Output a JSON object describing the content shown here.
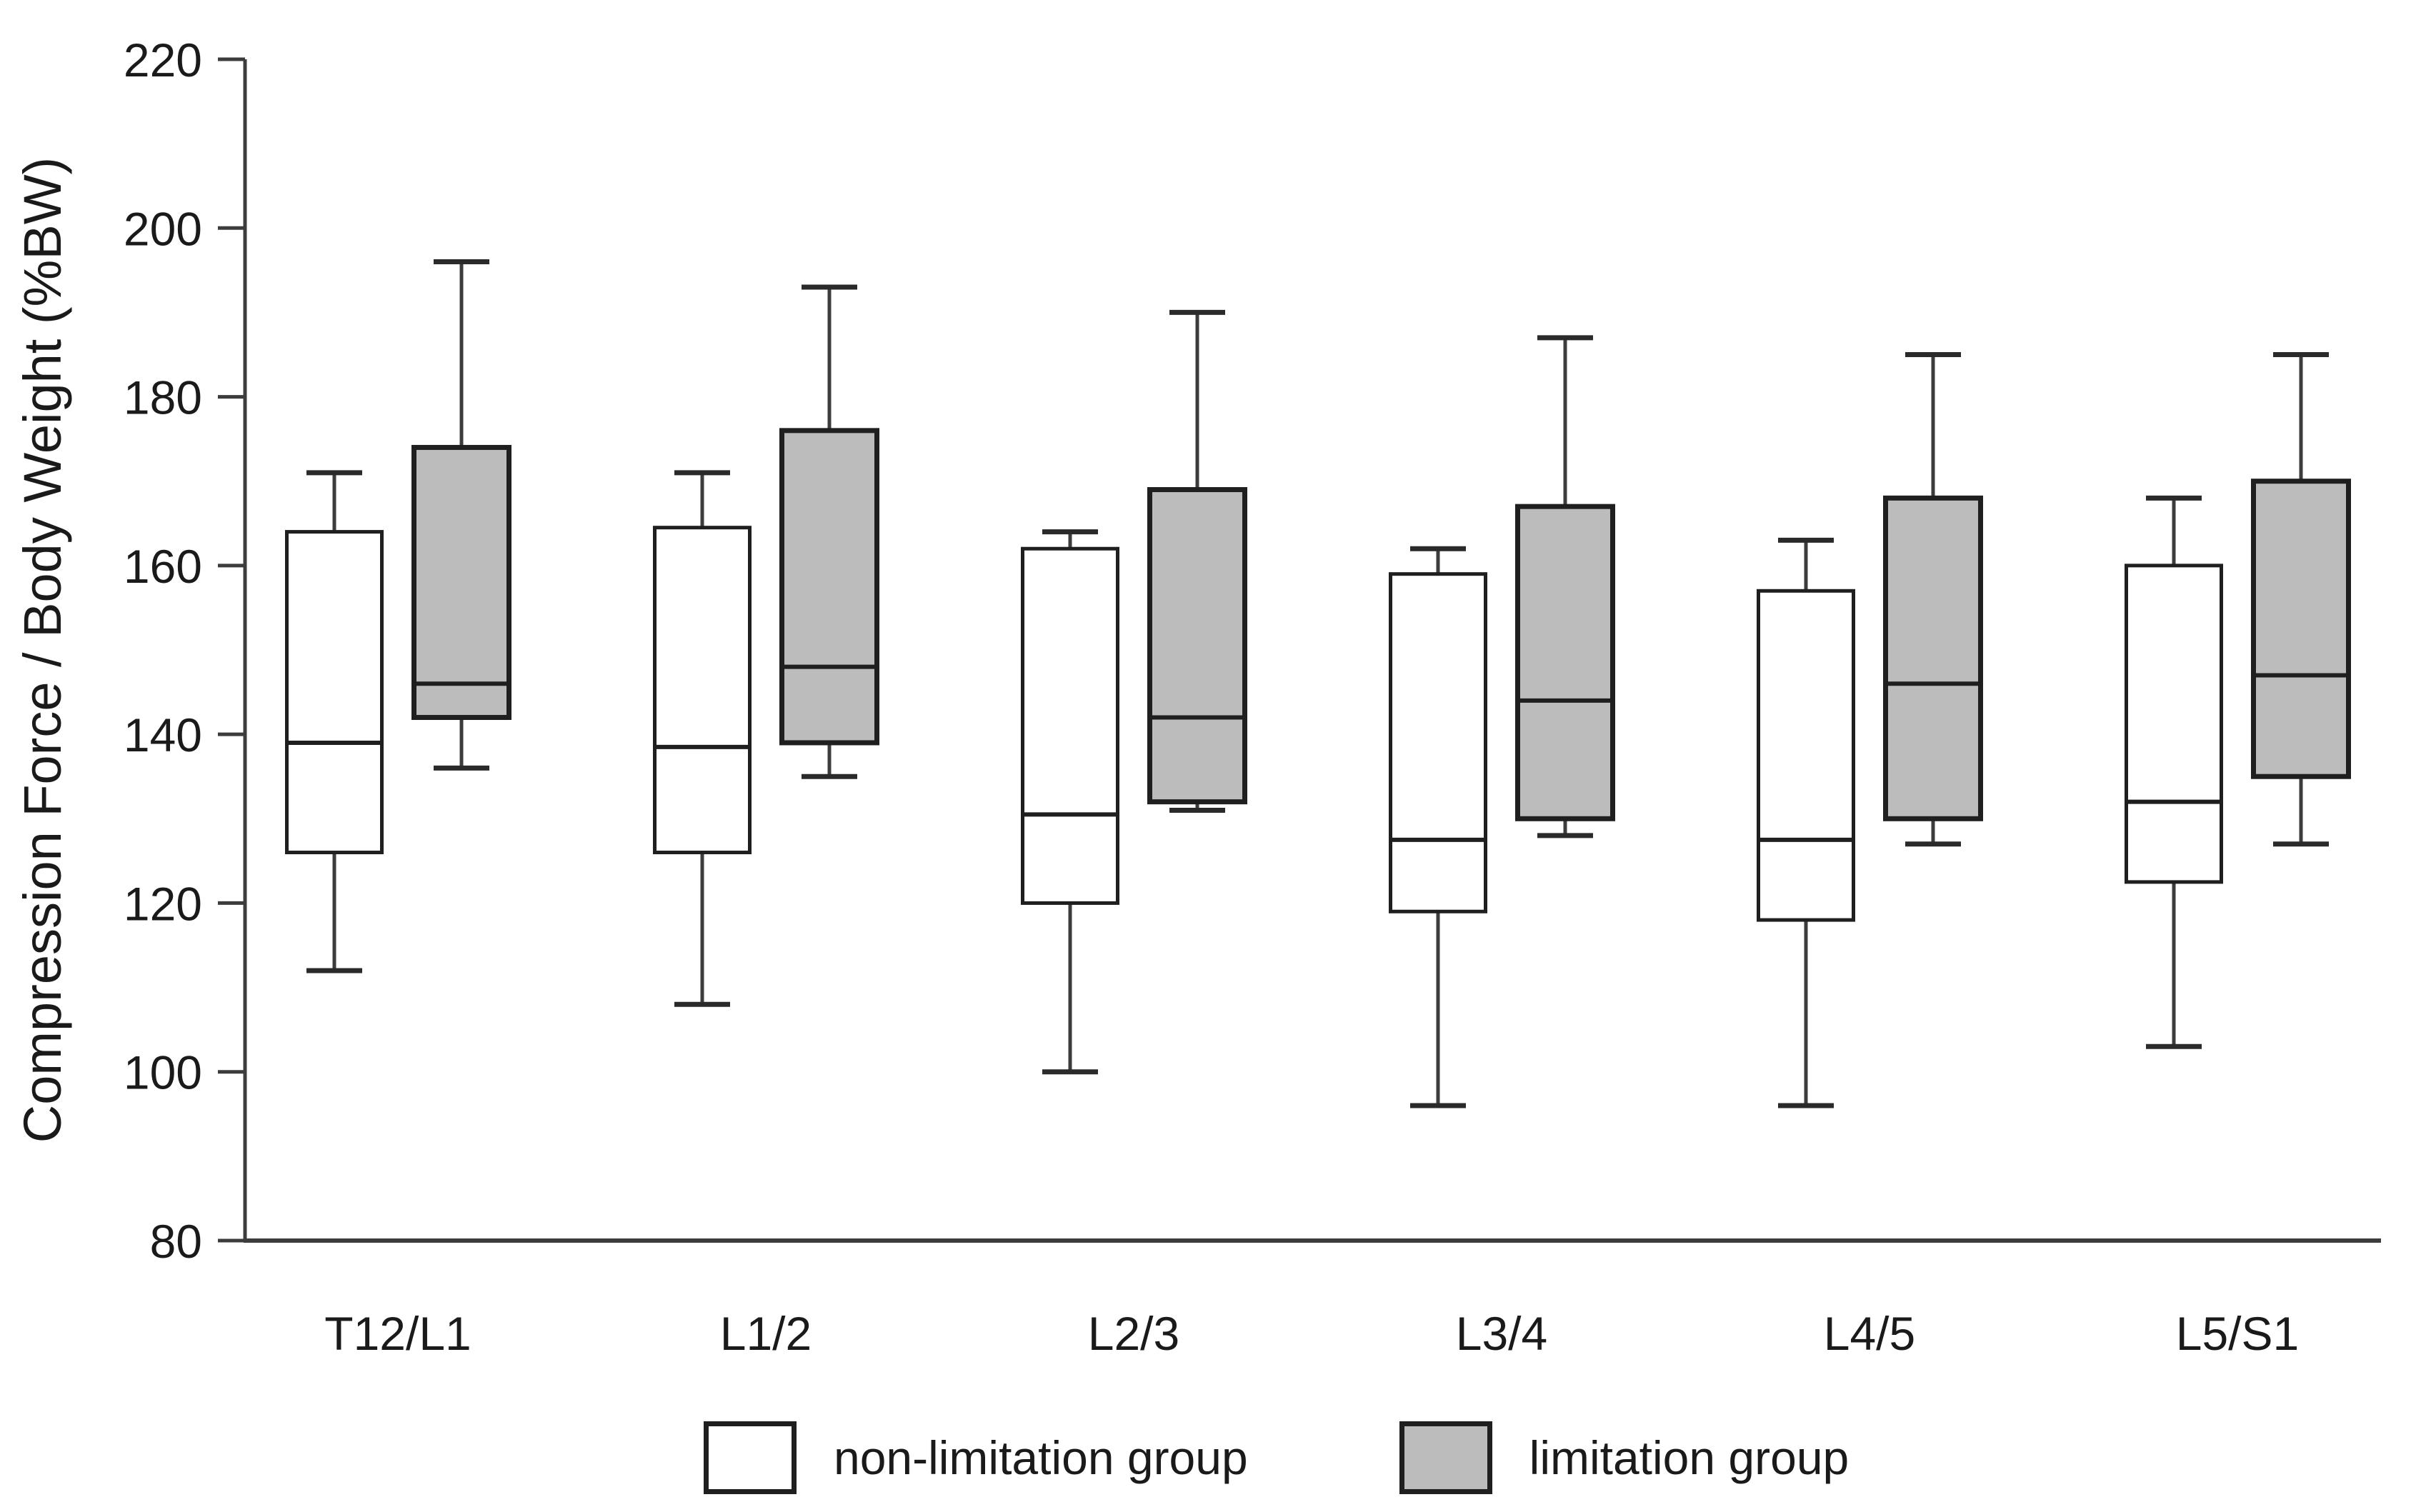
{
  "colors": {
    "background": "#ffffff",
    "axis": "#3c3c3c",
    "box_border": "#1f1f1f",
    "median": "#1f1f1f",
    "whisker_stem": "#3c3c3c",
    "whisker_cap": "#2a2a2a",
    "text": "#1a1a1a",
    "non_limitation_fill": "#ffffff",
    "limitation_fill": "#bcbcbc"
  },
  "legend": {
    "items": [
      {
        "label": "non-limitation group",
        "fill": "#ffffff"
      },
      {
        "label": "limitation group",
        "fill": "#bcbcbc"
      }
    ],
    "position": "bottom-center"
  },
  "chart_data": {
    "type": "boxplot",
    "title": "",
    "ylabel": "Compression Force / Body Weight (%BW)",
    "xlabel": "",
    "ylim": [
      80,
      220
    ],
    "y_ticks": [
      80,
      100,
      120,
      140,
      160,
      180,
      200,
      220
    ],
    "grid": false,
    "legend_position": "bottom",
    "categories": [
      "T12/L1",
      "L1/2",
      "L2/3",
      "L3/4",
      "L4/5",
      "L5/S1"
    ],
    "series": [
      {
        "name": "non-limitation group",
        "fill": "#ffffff",
        "boxes": [
          {
            "category": "T12/L1",
            "min": 112,
            "q1": 126,
            "median": 139,
            "q3": 164,
            "max": 171
          },
          {
            "category": "L1/2",
            "min": 108,
            "q1": 126,
            "median": 138.5,
            "q3": 164.5,
            "max": 171
          },
          {
            "category": "L2/3",
            "min": 100,
            "q1": 120,
            "median": 130.5,
            "q3": 162,
            "max": 164
          },
          {
            "category": "L3/4",
            "min": 96,
            "q1": 119,
            "median": 127.5,
            "q3": 159,
            "max": 162
          },
          {
            "category": "L4/5",
            "min": 96,
            "q1": 118,
            "median": 127.5,
            "q3": 157,
            "max": 163
          },
          {
            "category": "L5/S1",
            "min": 103,
            "q1": 122.5,
            "median": 132,
            "q3": 160,
            "max": 168
          }
        ]
      },
      {
        "name": "limitation group",
        "fill": "#bcbcbc",
        "boxes": [
          {
            "category": "T12/L1",
            "min": 136,
            "q1": 142,
            "median": 146,
            "q3": 174,
            "max": 196
          },
          {
            "category": "L1/2",
            "min": 135,
            "q1": 139,
            "median": 148,
            "q3": 176,
            "max": 193
          },
          {
            "category": "L2/3",
            "min": 131,
            "q1": 132,
            "median": 142,
            "q3": 169,
            "max": 190
          },
          {
            "category": "L3/4",
            "min": 128,
            "q1": 130,
            "median": 144,
            "q3": 167,
            "max": 187
          },
          {
            "category": "L4/5",
            "min": 127,
            "q1": 130,
            "median": 146,
            "q3": 168,
            "max": 185
          },
          {
            "category": "L5/S1",
            "min": 127,
            "q1": 135,
            "median": 147,
            "q3": 170,
            "max": 185
          }
        ]
      }
    ]
  }
}
